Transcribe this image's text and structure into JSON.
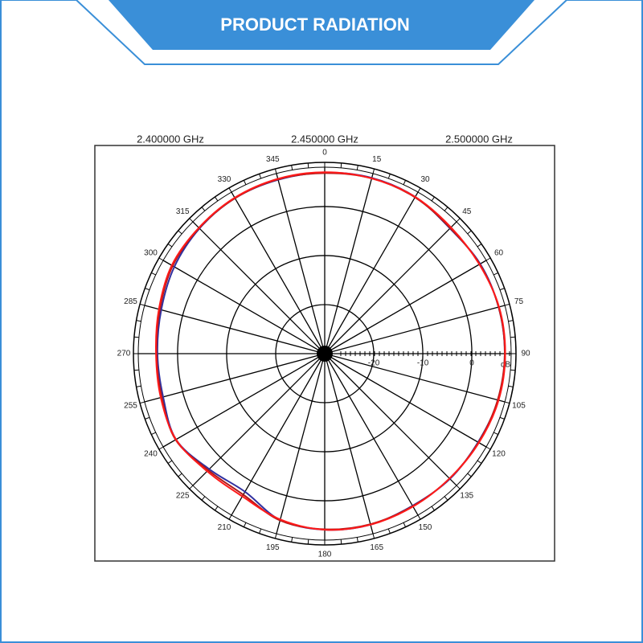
{
  "header": {
    "title": "PRODUCT RADIATION"
  },
  "chart_data": {
    "type": "polar",
    "angles": [
      0,
      15,
      30,
      45,
      60,
      75,
      90,
      105,
      120,
      135,
      150,
      165,
      180,
      195,
      210,
      225,
      240,
      255,
      270,
      285,
      300,
      315,
      330,
      345
    ],
    "rlim": [
      -30,
      9
    ],
    "rticks": [
      -20,
      -10,
      0
    ],
    "r_unit": "dB",
    "series": [
      {
        "name": "2.400000  GHz",
        "color": "#3030a0",
        "values": [
          6.9,
          7.1,
          6.9,
          6.1,
          6.6,
          6.7,
          6.7,
          6.6,
          6.1,
          6.1,
          5.8,
          6.1,
          5.9,
          5.1,
          2.5,
          3.3,
          5.0,
          4.1,
          4.1,
          4.5,
          5.4,
          6.1,
          6.6,
          6.7
        ]
      },
      {
        "name": "2.450000  GHz",
        "color": "#b01818",
        "values": [
          6.8,
          7.0,
          6.8,
          6.2,
          6.5,
          6.7,
          6.7,
          6.5,
          6.2,
          6.0,
          5.9,
          6.0,
          5.8,
          5.2,
          3.2,
          3.6,
          5.1,
          4.4,
          4.3,
          4.8,
          5.8,
          6.2,
          6.6,
          6.8
        ]
      },
      {
        "name": "2.500000  GHz",
        "color": "#ff1a1a",
        "values": [
          7.0,
          7.0,
          6.9,
          6.4,
          6.4,
          6.8,
          6.8,
          6.7,
          6.3,
          6.0,
          6.0,
          6.1,
          5.9,
          5.0,
          3.6,
          3.9,
          5.0,
          4.6,
          4.4,
          5.0,
          6.0,
          6.3,
          6.7,
          6.9
        ]
      }
    ]
  }
}
